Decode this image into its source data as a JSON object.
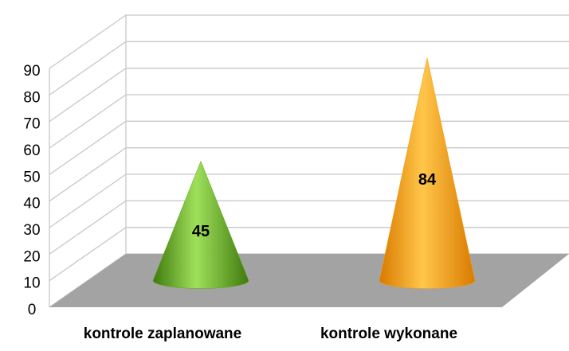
{
  "chart_data": {
    "type": "cone",
    "categories": [
      "kontrole zaplanowane",
      "kontrole wykonane"
    ],
    "series": [
      {
        "name": "",
        "colors": [
          "#5fa61e",
          "#f7a21b"
        ],
        "values": [
          45,
          84
        ]
      }
    ],
    "ylim": [
      0,
      90
    ],
    "yticks": [
      0,
      10,
      20,
      30,
      40,
      50,
      60,
      70,
      80,
      90
    ],
    "grid": true
  }
}
